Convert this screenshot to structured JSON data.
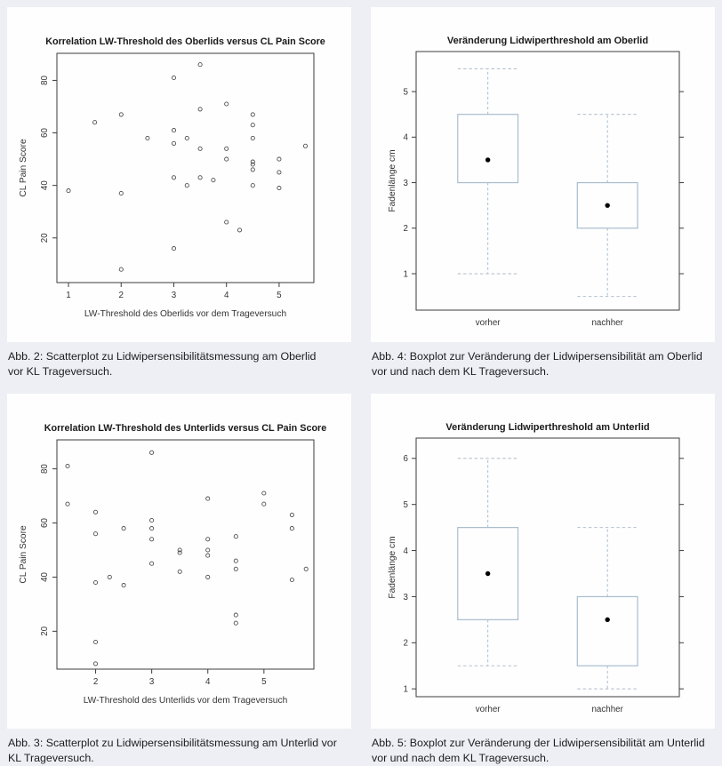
{
  "page": {
    "background": "#eeeff4",
    "panel_background": "#fefefe"
  },
  "colors": {
    "axis": "#3c3c3c",
    "tick_text": "#343434",
    "title_text": "#1a1a1a",
    "point_stroke": "#4f4f4f",
    "box_line": "#a9bdce",
    "whisker_line": "#a9bdce",
    "cap_line": "#b7c1cc",
    "median_dot": "#000000",
    "caption_text": "#1d1d1f"
  },
  "captions": [
    "Abb. 2: Scatterplot zu Lidwipersensibilitätsmessung am Oberlid\nvor KL Trageversuch.",
    "Abb. 4: Boxplot zur Veränderung der Lidwipersensibilität am Oberlid\nvor und nach dem KL Trageversuch.",
    "Abb. 3: Scatterplot zu Lidwipersensibilitätsmessung am Unterlid vor\nKL Trageversuch.",
    "Abb. 5: Boxplot zur Veränderung der Lidwipersensibilität am Unterlid\nvor und nach dem KL Trageversuch."
  ],
  "chart_data": [
    {
      "id": "scatter-oberlid",
      "type": "scatter",
      "title": "Korrelation LW-Threshold des Oberlids versus CL Pain Score",
      "xlabel": "LW-Threshold des Oberlids vor dem Trageversuch",
      "ylabel": "CL Pain Score",
      "xlim": [
        0.78,
        5.66
      ],
      "ylim": [
        3,
        90.3
      ],
      "xticks": [
        1,
        2,
        3,
        4,
        5
      ],
      "yticks": [
        20,
        40,
        60,
        80
      ],
      "grid": false,
      "points": [
        [
          1,
          38
        ],
        [
          1.5,
          64
        ],
        [
          2,
          67
        ],
        [
          2,
          37
        ],
        [
          2,
          8
        ],
        [
          2.5,
          58
        ],
        [
          3,
          81
        ],
        [
          3,
          61
        ],
        [
          3,
          56
        ],
        [
          3,
          43
        ],
        [
          3,
          16
        ],
        [
          3.25,
          58
        ],
        [
          3.25,
          40
        ],
        [
          3.5,
          86
        ],
        [
          3.5,
          69
        ],
        [
          3.5,
          54
        ],
        [
          3.5,
          43
        ],
        [
          3.75,
          42
        ],
        [
          4,
          71
        ],
        [
          4,
          54
        ],
        [
          4,
          50
        ],
        [
          4,
          26
        ],
        [
          4.25,
          23
        ],
        [
          4.5,
          67
        ],
        [
          4.5,
          63
        ],
        [
          4.5,
          58
        ],
        [
          4.5,
          49
        ],
        [
          4.5,
          48
        ],
        [
          4.5,
          46
        ],
        [
          4.5,
          40
        ],
        [
          5,
          50
        ],
        [
          5,
          45
        ],
        [
          5,
          39
        ],
        [
          5.5,
          55
        ]
      ]
    },
    {
      "id": "boxplot-oberlid",
      "type": "boxplot",
      "title": "Veränderung Lidwiperthreshold am Oberlid",
      "ylabel": "Fadenlänge cm",
      "ylim": [
        0.2,
        5.88
      ],
      "yticks": [
        1,
        2,
        3,
        4,
        5
      ],
      "grid": false,
      "categories": [
        "vorher",
        "nachher"
      ],
      "boxes": [
        {
          "label": "vorher",
          "whisker_low": 1.0,
          "q1": 3.0,
          "median": 3.5,
          "q3": 4.5,
          "whisker_high": 5.5
        },
        {
          "label": "nachher",
          "whisker_low": 0.5,
          "q1": 2.0,
          "median": 2.5,
          "q3": 3.0,
          "whisker_high": 4.5
        }
      ]
    },
    {
      "id": "scatter-unterlid",
      "type": "scatter",
      "title": "Korrelation LW-Threshold des Unterlids versus CL Pain Score",
      "xlabel": "LW-Threshold des Unterlids vor dem Trageversuch",
      "ylabel": "CL Pain Score",
      "xlim": [
        1.31,
        5.89
      ],
      "ylim": [
        6,
        90.7
      ],
      "xticks": [
        2,
        3,
        4,
        5
      ],
      "yticks": [
        20,
        40,
        60,
        80
      ],
      "grid": false,
      "points": [
        [
          1.5,
          81
        ],
        [
          1.5,
          67
        ],
        [
          2,
          64
        ],
        [
          2,
          56
        ],
        [
          2,
          38
        ],
        [
          2,
          16
        ],
        [
          2,
          8
        ],
        [
          2.25,
          40
        ],
        [
          2.5,
          58
        ],
        [
          2.5,
          37
        ],
        [
          3,
          86
        ],
        [
          3,
          61
        ],
        [
          3,
          58
        ],
        [
          3,
          54
        ],
        [
          3,
          45
        ],
        [
          3.5,
          50
        ],
        [
          3.5,
          49
        ],
        [
          3.5,
          42
        ],
        [
          4,
          69
        ],
        [
          4,
          54
        ],
        [
          4,
          50
        ],
        [
          4,
          48
        ],
        [
          4,
          40
        ],
        [
          4.5,
          55
        ],
        [
          4.5,
          46
        ],
        [
          4.5,
          43
        ],
        [
          4.5,
          26
        ],
        [
          4.5,
          23
        ],
        [
          5,
          71
        ],
        [
          5,
          67
        ],
        [
          5.5,
          63
        ],
        [
          5.5,
          58
        ],
        [
          5.5,
          39
        ],
        [
          5.75,
          43
        ]
      ]
    },
    {
      "id": "boxplot-unterlid",
      "type": "boxplot",
      "title": "Veränderung Lidwiperthreshold am Unterlid",
      "ylabel": "Fadenlänge cm",
      "ylim": [
        0.83,
        6.44
      ],
      "yticks": [
        1,
        2,
        3,
        4,
        5,
        6
      ],
      "grid": false,
      "categories": [
        "vorher",
        "nachher"
      ],
      "boxes": [
        {
          "label": "vorher",
          "whisker_low": 1.5,
          "q1": 2.5,
          "median": 3.5,
          "q3": 4.5,
          "whisker_high": 6.0
        },
        {
          "label": "nachher",
          "whisker_low": 1.0,
          "q1": 1.5,
          "median": 2.5,
          "q3": 3.0,
          "whisker_high": 4.5
        }
      ]
    }
  ]
}
